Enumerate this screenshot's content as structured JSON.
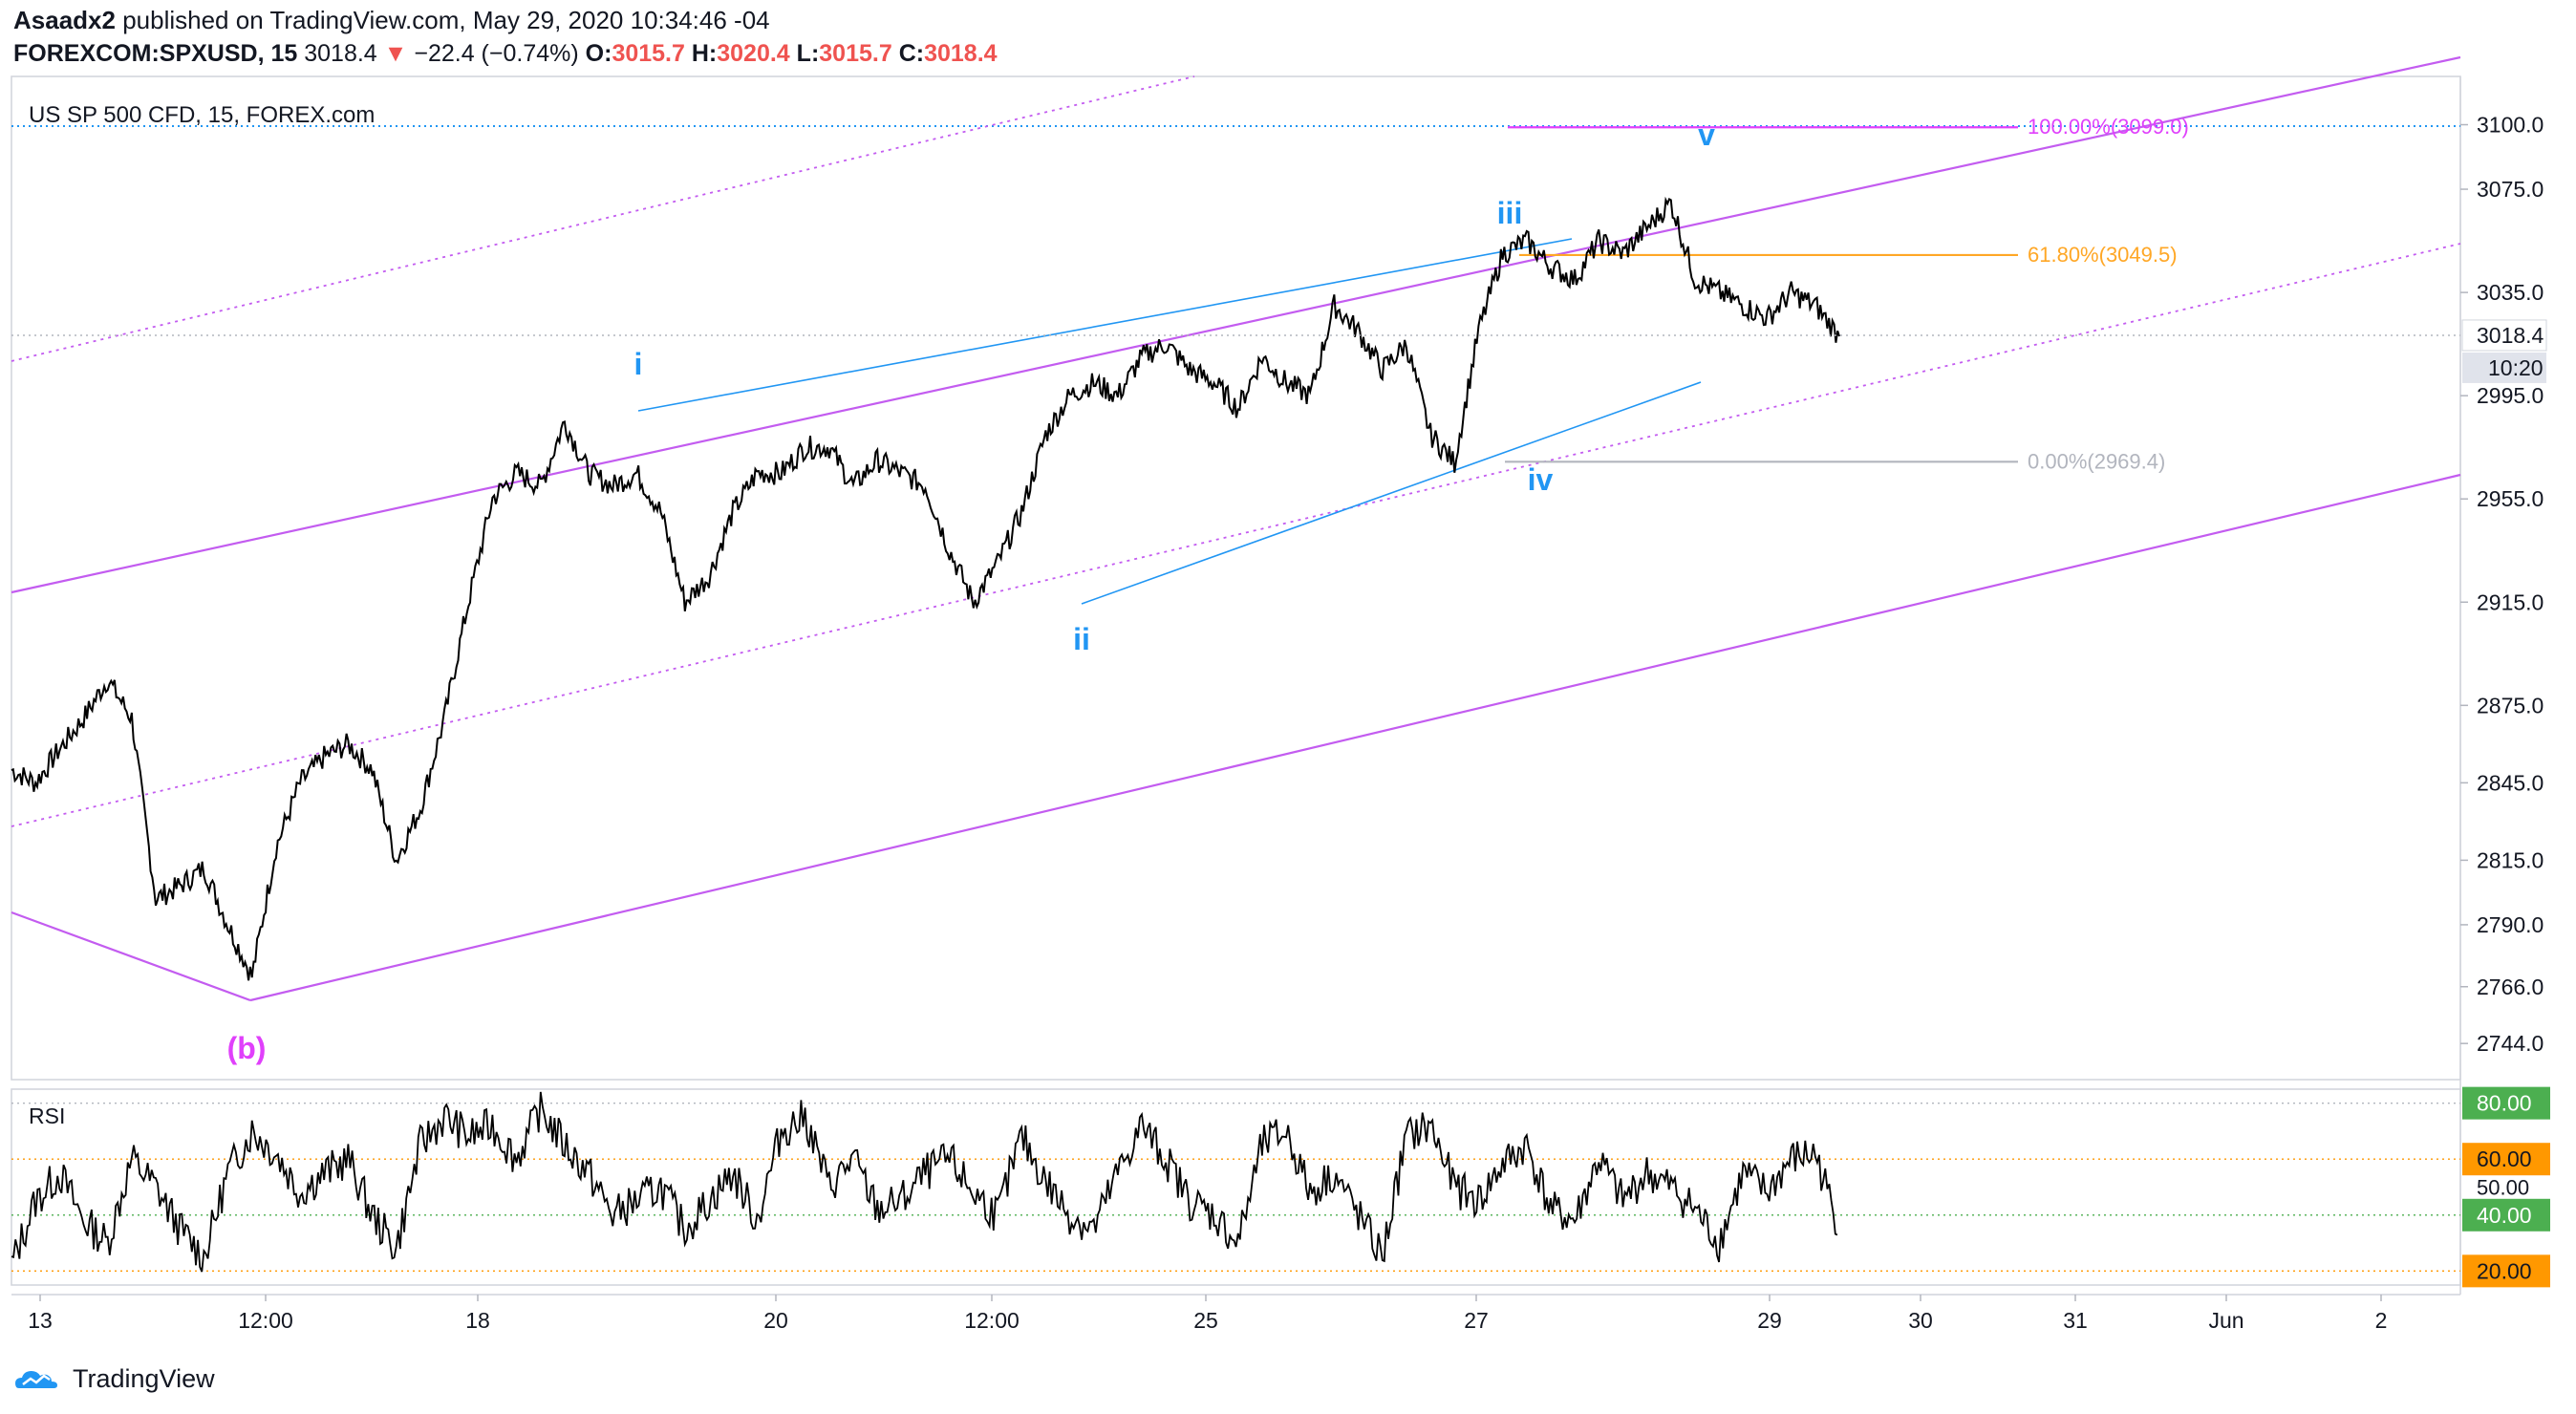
{
  "header": {
    "user": "Asaadx2",
    "published": "published on TradingView.com, May 29, 2020 10:34:46 -04",
    "symbol": "FOREXCOM:SPXUSD, 15",
    "last": "3018.4",
    "change": "−22.4 (−0.74%)",
    "o_label": "O:",
    "o": "3015.7",
    "h_label": "H:",
    "h": "3020.4",
    "l_label": "L:",
    "l": "3015.7",
    "c_label": "C:",
    "c": "3018.4"
  },
  "pane_title": "US SP 500 CFD, 15, FOREX.com",
  "footer": {
    "brand": "TradingView",
    "logo_icon": "tradingview-logo-icon"
  },
  "colors": {
    "price": "#000000",
    "channel": "#c35cf0",
    "wave": "#2196f3",
    "fib100": "#e040fb",
    "fib618": "#ffa726",
    "fib0": "#b2b5be",
    "rsi_up": "#4caf50",
    "rsi_mid": "#ff9800"
  },
  "chart_data": [
    {
      "type": "line",
      "title": "US SP 500 CFD, 15, FOREX.com",
      "ylim": [
        2730,
        3115
      ],
      "y_ticks": [
        "3100.0",
        "3075.0",
        "3035.0",
        "2995.0",
        "2955.0",
        "2915.0",
        "2875.0",
        "2845.0",
        "2815.0",
        "2790.0",
        "2766.0",
        "2744.0"
      ],
      "x_ticks": [
        "13",
        "12:00",
        "18",
        "20",
        "12:00",
        "25",
        "27",
        "29",
        "30",
        "31",
        "Jun",
        "2"
      ],
      "last_price_label": "3018.4",
      "countdown": "10:20",
      "series": [
        {
          "values": [
            2850,
            2845,
            2858,
            2870,
            2885,
            2870,
            2800,
            2805,
            2812,
            2790,
            2770,
            2820,
            2845,
            2855,
            2860,
            2850,
            2815,
            2835,
            2870,
            2915,
            2955,
            2965,
            2960,
            2985,
            2965,
            2960,
            2965,
            2950,
            2915,
            2925,
            2950,
            2965,
            2965,
            2975,
            2975,
            2960,
            2970,
            2965,
            2960,
            2935,
            2915,
            2930,
            2950,
            2980,
            2995,
            3000,
            2995,
            3010,
            3015,
            3005,
            3000,
            2990,
            3010,
            3000,
            2995,
            3030,
            3020,
            3005,
            3015,
            2980,
            2969,
            3020,
            3050,
            3055,
            3045,
            3040,
            3055,
            3050,
            3060,
            3070,
            3040,
            3035,
            3030,
            3025,
            3035,
            3030,
            3018
          ]
        }
      ],
      "wave_labels": [
        {
          "text": "(b)",
          "x": "May 14 12:00",
          "y": 2766
        },
        {
          "text": "i",
          "x": "May 19",
          "y": 2985
        },
        {
          "text": "ii",
          "x": "May 22",
          "y": 2909
        },
        {
          "text": "iii",
          "x": "May 27",
          "y": 3037
        },
        {
          "text": "iv",
          "x": "May 27",
          "y": 2969
        },
        {
          "text": "v",
          "x": "May 28",
          "y": 3070
        }
      ],
      "fib_levels": [
        {
          "label": "100.00%(3099.0)",
          "value": 3099.0
        },
        {
          "label": "61.80%(3049.5)",
          "value": 3049.5
        },
        {
          "label": "0.00%(2969.4)",
          "value": 2969.4
        }
      ]
    },
    {
      "type": "line",
      "title": "RSI",
      "ylim": [
        15,
        85
      ],
      "y_ticks": [
        "80.00",
        "60.00",
        "50.00",
        "40.00",
        "20.00"
      ],
      "badges": [
        "80.00",
        "60.00",
        "40.00",
        "20.00"
      ],
      "series": [
        {
          "values": [
            22,
            45,
            55,
            38,
            30,
            60,
            50,
            35,
            25,
            55,
            70,
            62,
            48,
            55,
            60,
            40,
            28,
            65,
            75,
            68,
            72,
            60,
            78,
            65,
            55,
            40,
            45,
            50,
            35,
            45,
            55,
            38,
            70,
            75,
            50,
            60,
            42,
            45,
            55,
            60,
            48,
            40,
            68,
            52,
            40,
            35,
            55,
            72,
            60,
            45,
            40,
            30,
            65,
            70,
            48,
            55,
            40,
            25,
            68,
            72,
            50,
            45,
            58,
            65,
            42,
            38,
            60,
            45,
            55,
            50,
            42,
            30,
            55,
            48,
            60,
            62,
            35
          ]
        }
      ]
    }
  ]
}
